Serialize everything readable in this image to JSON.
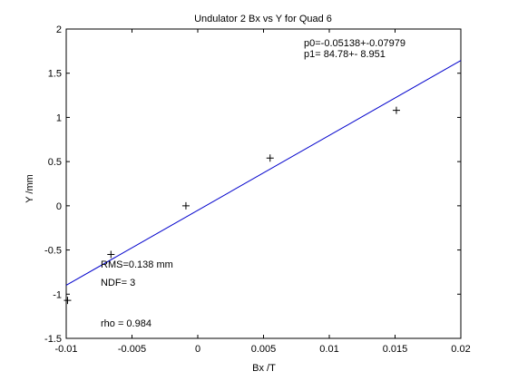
{
  "chart_data": {
    "type": "scatter",
    "title": "Undulator 2 Bx vs Y for Quad 6",
    "xlabel": "Bx /T",
    "ylabel": "Y /mm",
    "xlim": [
      -0.01,
      0.02
    ],
    "ylim": [
      -1.5,
      2
    ],
    "x_ticks": [
      -0.01,
      -0.005,
      0,
      0.005,
      0.01,
      0.015,
      0.02
    ],
    "x_tick_labels": [
      "-0.01",
      "-0.005",
      "0",
      "0.005",
      "0.01",
      "0.015",
      "0.02"
    ],
    "y_ticks": [
      -1.5,
      -1,
      -0.5,
      0,
      0.5,
      1,
      1.5,
      2
    ],
    "y_tick_labels": [
      "-1.5",
      "-1",
      "-0.5",
      "0",
      "0.5",
      "1",
      "1.5",
      "2"
    ],
    "grid": false,
    "points": [
      {
        "x": -0.0099,
        "y": -1.07
      },
      {
        "x": -0.0066,
        "y": -0.55
      },
      {
        "x": -0.0009,
        "y": 0.0
      },
      {
        "x": 0.0055,
        "y": 0.54
      },
      {
        "x": 0.0151,
        "y": 1.08
      }
    ],
    "fit_line": {
      "color": "#0000cc",
      "x": [
        -0.01,
        0.02
      ],
      "y": [
        -0.899,
        1.644
      ]
    },
    "fit_params": [
      "p0=-0.05138+-0.07979",
      "p1=  84.78+- 8.951"
    ],
    "stats": {
      "rms": "RMS=0.138 mm",
      "ndf": "NDF=    3",
      "rho": "rho     =  0.984"
    }
  }
}
